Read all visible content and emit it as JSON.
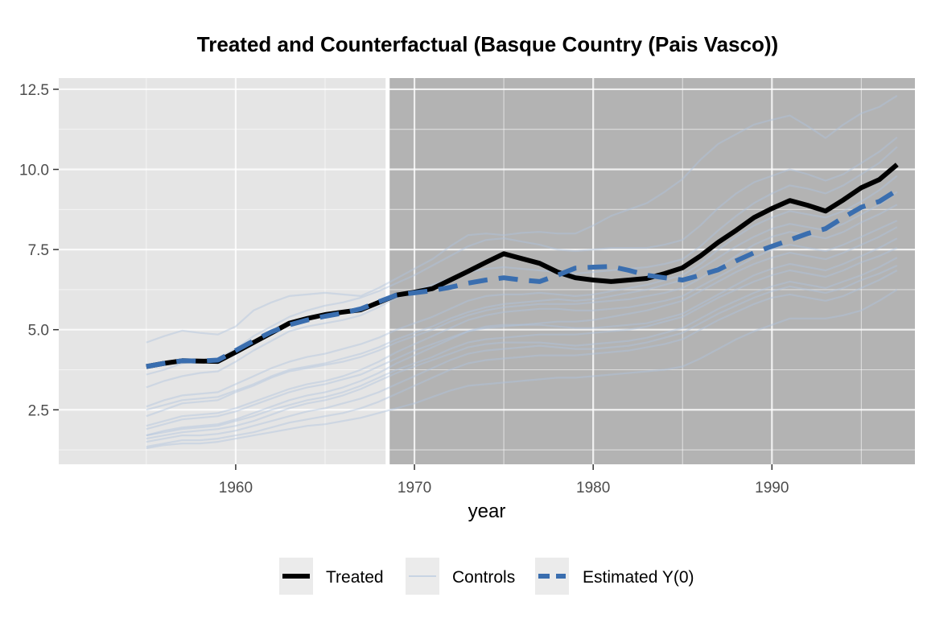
{
  "chart_data": {
    "type": "line",
    "title": "Treated and Counterfactual (Basque Country (Pais Vasco))",
    "xlabel": "year",
    "ylabel": "",
    "xlim": [
      1950.1,
      1998.0
    ],
    "ylim": [
      0.8,
      12.85
    ],
    "xticks": [
      1960,
      1970,
      1980,
      1990
    ],
    "xtick_labels": [
      "1960",
      "1970",
      "1980",
      "1990"
    ],
    "yticks": [
      2.5,
      5.0,
      7.5,
      10.0,
      12.5
    ],
    "ytick_labels": [
      "2.5",
      "5.0",
      "7.5",
      "10.0",
      "12.5"
    ],
    "treatment_start": 1968.5,
    "grid": true,
    "legend_position": "bottom",
    "legend": [
      "Treated",
      "Controls",
      "Estimated Y(0)"
    ],
    "colors": {
      "treated": "#000000",
      "controls": "#b0c4de",
      "estimated": "#3a6eaf",
      "pre_panel": "#e5e5e5",
      "post_panel": "#b3b3b3"
    },
    "x": [
      1955,
      1956,
      1957,
      1958,
      1959,
      1960,
      1961,
      1962,
      1963,
      1964,
      1965,
      1966,
      1967,
      1968,
      1969,
      1970,
      1971,
      1972,
      1973,
      1974,
      1975,
      1976,
      1977,
      1978,
      1979,
      1980,
      1981,
      1982,
      1983,
      1984,
      1985,
      1986,
      1987,
      1988,
      1989,
      1990,
      1991,
      1992,
      1993,
      1994,
      1995,
      1996,
      1997
    ],
    "series": [
      {
        "name": "Treated",
        "role": "treated",
        "values": [
          3.85,
          3.95,
          4.03,
          4.02,
          4.01,
          4.3,
          4.6,
          4.9,
          5.2,
          5.35,
          5.47,
          5.55,
          5.62,
          5.85,
          6.08,
          6.17,
          6.28,
          6.55,
          6.82,
          7.1,
          7.37,
          7.22,
          7.07,
          6.8,
          6.62,
          6.55,
          6.5,
          6.55,
          6.6,
          6.75,
          6.93,
          7.3,
          7.73,
          8.1,
          8.5,
          8.78,
          9.03,
          8.88,
          8.7,
          9.05,
          9.43,
          9.68,
          10.15
        ]
      },
      {
        "name": "Estimated Y(0)",
        "role": "estimated",
        "values": [
          3.85,
          3.95,
          4.03,
          4.02,
          4.05,
          4.35,
          4.65,
          4.93,
          5.15,
          5.3,
          5.42,
          5.52,
          5.65,
          5.87,
          6.08,
          6.15,
          6.22,
          6.32,
          6.45,
          6.55,
          6.62,
          6.55,
          6.5,
          6.7,
          6.92,
          6.95,
          6.97,
          6.85,
          6.7,
          6.62,
          6.55,
          6.7,
          6.87,
          7.15,
          7.4,
          7.6,
          7.8,
          8.0,
          8.15,
          8.5,
          8.82,
          9.0,
          9.35
        ]
      },
      {
        "role": "control",
        "values": [
          4.6,
          4.8,
          4.97,
          4.9,
          4.85,
          5.1,
          5.6,
          5.85,
          6.05,
          6.1,
          6.15,
          6.1,
          6.05,
          6.3,
          6.6,
          6.9,
          7.2,
          7.6,
          7.95,
          8.0,
          7.95,
          8.02,
          8.05,
          8.0,
          8.0,
          8.25,
          8.55,
          8.75,
          8.95,
          9.3,
          9.7,
          10.3,
          10.8,
          11.1,
          11.4,
          11.55,
          11.68,
          11.35,
          10.98,
          11.4,
          11.75,
          11.95,
          12.3
        ]
      },
      {
        "role": "control",
        "values": [
          3.6,
          3.75,
          3.95,
          4.05,
          4.1,
          4.4,
          4.8,
          5.1,
          5.4,
          5.6,
          5.75,
          5.85,
          6.0,
          6.2,
          6.45,
          6.7,
          7.0,
          7.3,
          7.6,
          7.8,
          7.85,
          7.75,
          7.65,
          7.5,
          7.45,
          7.5,
          7.55,
          7.55,
          7.55,
          7.65,
          7.8,
          8.25,
          8.8,
          9.25,
          9.6,
          9.8,
          10.0,
          9.85,
          9.65,
          9.85,
          10.2,
          10.55,
          11.0
        ]
      },
      {
        "role": "control",
        "values": [
          3.2,
          3.4,
          3.55,
          3.65,
          3.7,
          4.0,
          4.35,
          4.65,
          4.95,
          5.1,
          5.2,
          5.3,
          5.45,
          5.7,
          6.0,
          6.2,
          6.4,
          6.6,
          6.8,
          6.9,
          6.95,
          6.9,
          6.85,
          6.8,
          6.75,
          6.8,
          6.85,
          6.9,
          6.95,
          7.05,
          7.2,
          7.6,
          8.1,
          8.55,
          8.95,
          9.25,
          9.5,
          9.4,
          9.25,
          9.5,
          9.85,
          10.2,
          10.7
        ]
      },
      {
        "role": "control",
        "values": [
          2.6,
          2.8,
          2.95,
          3.0,
          3.05,
          3.3,
          3.55,
          3.8,
          4.0,
          4.15,
          4.25,
          4.4,
          4.55,
          4.75,
          5.0,
          5.2,
          5.4,
          5.65,
          5.9,
          6.05,
          6.1,
          6.1,
          6.15,
          6.1,
          6.05,
          6.1,
          6.2,
          6.3,
          6.4,
          6.55,
          6.7,
          7.05,
          7.5,
          7.9,
          8.25,
          8.5,
          8.7,
          8.6,
          8.5,
          8.7,
          9.0,
          9.35,
          9.8
        ]
      },
      {
        "role": "control",
        "values": [
          2.5,
          2.65,
          2.8,
          2.85,
          2.9,
          3.1,
          3.3,
          3.55,
          3.75,
          3.85,
          3.95,
          4.1,
          4.25,
          4.45,
          4.7,
          4.9,
          5.1,
          5.35,
          5.55,
          5.7,
          5.8,
          5.85,
          5.9,
          5.95,
          5.9,
          5.95,
          6.05,
          6.15,
          6.25,
          6.4,
          6.55,
          6.9,
          7.25,
          7.6,
          7.9,
          8.15,
          8.3,
          8.2,
          8.1,
          8.3,
          8.6,
          8.9,
          9.3
        ]
      },
      {
        "role": "control",
        "values": [
          2.3,
          2.5,
          2.7,
          2.75,
          2.8,
          3.05,
          3.25,
          3.5,
          3.7,
          3.8,
          3.9,
          4.0,
          4.15,
          4.35,
          4.6,
          4.8,
          5.0,
          5.25,
          5.45,
          5.6,
          5.7,
          5.75,
          5.8,
          5.8,
          5.8,
          5.85,
          5.9,
          5.95,
          6.05,
          6.15,
          6.3,
          6.6,
          6.95,
          7.3,
          7.65,
          7.9,
          8.05,
          7.95,
          7.85,
          8.05,
          8.35,
          8.6,
          8.9
        ]
      },
      {
        "role": "control",
        "values": [
          2.0,
          2.15,
          2.3,
          2.35,
          2.4,
          2.55,
          2.75,
          2.95,
          3.15,
          3.3,
          3.4,
          3.55,
          3.75,
          4.0,
          4.3,
          4.55,
          4.8,
          5.05,
          5.3,
          5.45,
          5.55,
          5.6,
          5.65,
          5.65,
          5.6,
          5.6,
          5.65,
          5.7,
          5.8,
          5.9,
          6.05,
          6.35,
          6.65,
          6.95,
          7.25,
          7.5,
          7.65,
          7.55,
          7.45,
          7.65,
          7.9,
          8.15,
          8.4
        ]
      },
      {
        "role": "control",
        "values": [
          1.9,
          2.05,
          2.2,
          2.25,
          2.3,
          2.45,
          2.65,
          2.85,
          3.05,
          3.2,
          3.3,
          3.45,
          3.6,
          3.85,
          4.1,
          4.35,
          4.55,
          4.75,
          4.95,
          5.05,
          5.1,
          5.15,
          5.2,
          5.25,
          5.25,
          5.3,
          5.4,
          5.5,
          5.6,
          5.75,
          5.9,
          6.2,
          6.5,
          6.8,
          7.05,
          7.25,
          7.4,
          7.3,
          7.2,
          7.4,
          7.65,
          7.9,
          8.2
        ]
      },
      {
        "role": "control",
        "values": [
          1.7,
          1.85,
          1.95,
          2.0,
          2.05,
          2.2,
          2.4,
          2.6,
          2.8,
          2.95,
          3.05,
          3.2,
          3.4,
          3.65,
          3.95,
          4.2,
          4.45,
          4.7,
          4.95,
          5.1,
          5.15,
          5.15,
          5.15,
          5.1,
          5.05,
          5.05,
          5.1,
          5.15,
          5.2,
          5.35,
          5.5,
          5.8,
          6.1,
          6.4,
          6.7,
          6.9,
          7.05,
          6.95,
          6.85,
          7.05,
          7.3,
          7.55,
          7.85
        ]
      },
      {
        "role": "control",
        "values": [
          1.7,
          1.8,
          1.9,
          1.95,
          2.0,
          2.15,
          2.3,
          2.5,
          2.65,
          2.8,
          2.9,
          3.05,
          3.25,
          3.5,
          3.75,
          3.95,
          4.15,
          4.4,
          4.6,
          4.7,
          4.75,
          4.8,
          4.85,
          4.85,
          4.85,
          4.9,
          4.95,
          5.0,
          5.1,
          5.25,
          5.4,
          5.7,
          6.0,
          6.25,
          6.5,
          6.7,
          6.85,
          6.75,
          6.65,
          6.85,
          7.1,
          7.3,
          7.55
        ]
      },
      {
        "role": "control",
        "values": [
          1.6,
          1.7,
          1.8,
          1.85,
          1.9,
          2.0,
          2.15,
          2.35,
          2.55,
          2.7,
          2.8,
          2.95,
          3.15,
          3.4,
          3.65,
          3.85,
          4.05,
          4.25,
          4.45,
          4.55,
          4.6,
          4.6,
          4.6,
          4.55,
          4.5,
          4.55,
          4.6,
          4.65,
          4.75,
          4.9,
          5.05,
          5.35,
          5.65,
          5.9,
          6.15,
          6.35,
          6.5,
          6.4,
          6.3,
          6.5,
          6.7,
          6.95,
          7.25
        ]
      },
      {
        "role": "control",
        "values": [
          1.5,
          1.6,
          1.7,
          1.7,
          1.75,
          1.85,
          2.0,
          2.15,
          2.3,
          2.45,
          2.55,
          2.7,
          2.85,
          3.05,
          3.3,
          3.55,
          3.8,
          4.05,
          4.25,
          4.35,
          4.4,
          4.45,
          4.5,
          4.45,
          4.4,
          4.4,
          4.45,
          4.5,
          4.6,
          4.75,
          4.9,
          5.2,
          5.5,
          5.75,
          6.0,
          6.2,
          6.35,
          6.25,
          6.15,
          6.3,
          6.55,
          6.75,
          7.0
        ]
      },
      {
        "role": "control",
        "values": [
          1.35,
          1.45,
          1.55,
          1.55,
          1.6,
          1.7,
          1.8,
          1.95,
          2.1,
          2.2,
          2.3,
          2.4,
          2.55,
          2.75,
          3.0,
          3.25,
          3.5,
          3.75,
          3.95,
          4.05,
          4.1,
          4.15,
          4.2,
          4.2,
          4.2,
          4.25,
          4.3,
          4.35,
          4.45,
          4.55,
          4.7,
          5.0,
          5.3,
          5.55,
          5.8,
          6.0,
          6.1,
          6.0,
          5.9,
          6.05,
          6.3,
          6.55,
          6.85
        ]
      },
      {
        "role": "control",
        "values": [
          1.3,
          1.4,
          1.45,
          1.45,
          1.5,
          1.6,
          1.7,
          1.8,
          1.9,
          2.0,
          2.05,
          2.15,
          2.25,
          2.4,
          2.55,
          2.7,
          2.9,
          3.1,
          3.25,
          3.3,
          3.35,
          3.4,
          3.45,
          3.5,
          3.5,
          3.55,
          3.6,
          3.65,
          3.7,
          3.75,
          3.85,
          4.1,
          4.4,
          4.7,
          4.95,
          5.15,
          5.35,
          5.35,
          5.35,
          5.45,
          5.6,
          5.9,
          6.25
        ]
      }
    ]
  }
}
